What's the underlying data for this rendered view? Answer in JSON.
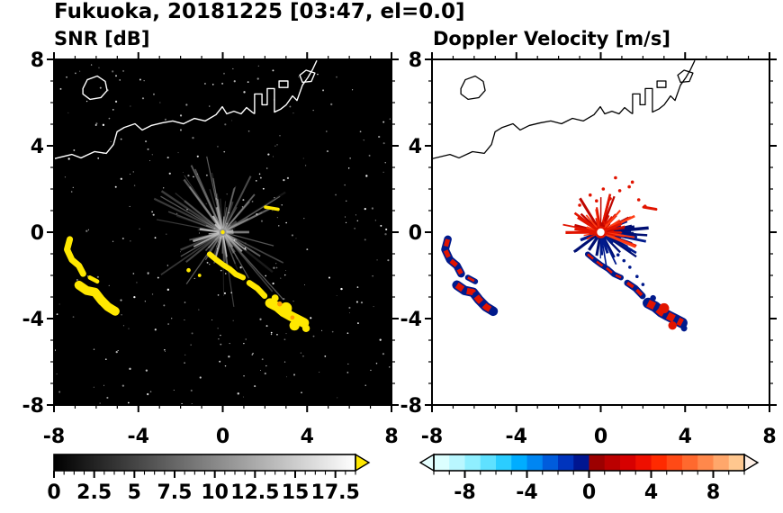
{
  "title": "Fukuoka, 20181225 [03:47, el=0.0]",
  "coastline": [
    {
      "name": "north-coast-west",
      "closed": false,
      "points": [
        [
          -8,
          3.4
        ],
        [
          -7.15,
          3.6
        ],
        [
          -6.72,
          3.44
        ],
        [
          -6.08,
          3.73
        ],
        [
          -5.52,
          3.65
        ],
        [
          -5.18,
          4.06
        ],
        [
          -5.01,
          4.65
        ],
        [
          -4.67,
          4.85
        ],
        [
          -4.16,
          5.02
        ],
        [
          -3.82,
          4.73
        ],
        [
          -3.39,
          4.94
        ],
        [
          -2.88,
          5.06
        ],
        [
          -2.37,
          5.15
        ],
        [
          -1.86,
          5.02
        ],
        [
          -1.34,
          5.27
        ],
        [
          -0.83,
          5.15
        ],
        [
          -0.32,
          5.44
        ],
        [
          -0.02,
          5.81
        ],
        [
          0.19,
          5.48
        ],
        [
          0.53,
          5.6
        ],
        [
          0.87,
          5.48
        ],
        [
          1.13,
          5.77
        ],
        [
          1.39,
          5.56
        ],
        [
          1.51,
          5.48
        ]
      ]
    },
    {
      "name": "harbor-piers",
      "closed": false,
      "points": [
        [
          1.51,
          5.48
        ],
        [
          1.51,
          6.4
        ],
        [
          1.86,
          6.4
        ],
        [
          1.86,
          5.9
        ],
        [
          2.11,
          5.9
        ],
        [
          2.11,
          6.65
        ],
        [
          2.45,
          6.65
        ],
        [
          2.45,
          5.56
        ],
        [
          2.75,
          5.7
        ],
        [
          3.01,
          5.9
        ],
        [
          3.31,
          6.31
        ],
        [
          3.52,
          6.1
        ],
        [
          3.78,
          6.81
        ],
        [
          4.03,
          7.15
        ],
        [
          4.25,
          7.52
        ],
        [
          4.46,
          7.95
        ]
      ]
    },
    {
      "name": "island",
      "closed": true,
      "points": [
        [
          -6.63,
          6.65
        ],
        [
          -6.42,
          7.06
        ],
        [
          -5.95,
          7.23
        ],
        [
          -5.57,
          6.98
        ],
        [
          -5.48,
          6.56
        ],
        [
          -5.78,
          6.23
        ],
        [
          -6.29,
          6.15
        ],
        [
          -6.63,
          6.4
        ]
      ]
    },
    {
      "name": "breakwater",
      "closed": true,
      "points": [
        [
          2.67,
          6.7
        ],
        [
          2.67,
          7.0
        ],
        [
          3.09,
          7.0
        ],
        [
          3.09,
          6.7
        ]
      ]
    },
    {
      "name": "headland",
      "closed": true,
      "points": [
        [
          3.65,
          7.27
        ],
        [
          3.95,
          7.5
        ],
        [
          4.37,
          7.37
        ],
        [
          4.2,
          6.98
        ],
        [
          3.78,
          6.94
        ]
      ]
    }
  ],
  "chart_data": [
    {
      "type": "heatmap",
      "title": "SNR [dB]",
      "xlabel": "",
      "ylabel": "",
      "xlim": [
        -8,
        8
      ],
      "ylim": [
        -8,
        8
      ],
      "xticks": [
        -8,
        -4,
        0,
        4,
        8
      ],
      "yticks": [
        -8,
        -4,
        0,
        4,
        8
      ],
      "minor_tick_step": 1,
      "background": "#000000",
      "radar_site": [
        0,
        0
      ],
      "echo_color": "#ffe800",
      "noise_speckle": {
        "count": 320,
        "color": "#ffffff",
        "seed": 42
      },
      "clutter_spokes": {
        "count": 85,
        "max_radius": 3.2,
        "color": "#b4b4b4",
        "seed": 7
      },
      "long_rays": [
        {
          "angle_deg": 32,
          "len": 3.2
        },
        {
          "angle_deg": -48,
          "len": 4.3
        },
        {
          "angle_deg": 150,
          "len": 3.4
        },
        {
          "angle_deg": 100,
          "len": 2.6
        },
        {
          "angle_deg": -125,
          "len": 3.0
        },
        {
          "angle_deg": -15,
          "len": 2.5
        },
        {
          "angle_deg": 210,
          "len": 2.3
        },
        {
          "angle_deg": 75,
          "len": 2.2
        }
      ],
      "echoes": [
        {
          "name": "west-arc-north",
          "width": 0.3,
          "points": [
            [
              -7.25,
              -0.33
            ],
            [
              -7.38,
              -0.8
            ],
            [
              -7.15,
              -1.28
            ],
            [
              -6.82,
              -1.55
            ],
            [
              -6.62,
              -1.92
            ]
          ]
        },
        {
          "name": "west-arc-south",
          "width": 0.42,
          "points": [
            [
              -6.82,
              -2.45
            ],
            [
              -6.45,
              -2.7
            ],
            [
              -6.05,
              -2.78
            ],
            [
              -5.78,
              -3.12
            ],
            [
              -5.45,
              -3.45
            ],
            [
              -5.1,
              -3.66
            ]
          ]
        },
        {
          "name": "west-dash",
          "width": 0.2,
          "points": [
            [
              -6.3,
              -2.1
            ],
            [
              -5.95,
              -2.28
            ]
          ]
        },
        {
          "name": "band-inner",
          "width": 0.26,
          "points": [
            [
              -0.62,
              -1.02
            ],
            [
              -0.3,
              -1.28
            ],
            [
              0,
              -1.5
            ],
            [
              0.33,
              -1.7
            ],
            [
              0.62,
              -1.95
            ],
            [
              0.96,
              -2.1
            ]
          ]
        },
        {
          "name": "band-mid",
          "width": 0.28,
          "points": [
            [
              1.26,
              -2.35
            ],
            [
              1.64,
              -2.6
            ],
            [
              1.98,
              -2.95
            ]
          ]
        },
        {
          "name": "band-outer",
          "width": 0.46,
          "points": [
            [
              2.24,
              -3.28
            ],
            [
              2.58,
              -3.45
            ],
            [
              2.88,
              -3.7
            ],
            [
              3.18,
              -3.86
            ],
            [
              3.52,
              -4.03
            ],
            [
              3.86,
              -4.2
            ]
          ]
        },
        {
          "name": "band-outer-dots",
          "dots": [
            [
              3.0,
              -3.52,
              0.28
            ],
            [
              3.4,
              -4.32,
              0.24
            ],
            [
              2.48,
              -3.05,
              0.17
            ],
            [
              3.95,
              -4.45,
              0.18
            ]
          ]
        },
        {
          "name": "band-orange-specks",
          "color": "#ff9c00",
          "dots": [
            [
              2.7,
              -3.32,
              0.12
            ],
            [
              3.3,
              -3.95,
              0.1
            ]
          ]
        },
        {
          "name": "northeast-dash",
          "width": 0.16,
          "points": [
            [
              2.03,
              1.16
            ],
            [
              2.62,
              1.06
            ]
          ]
        },
        {
          "name": "inner-specks",
          "dots": [
            [
              -1.62,
              -1.76,
              0.1
            ],
            [
              -1.1,
              -2.0,
              0.08
            ]
          ]
        }
      ],
      "colorbar": {
        "range": [
          0,
          18.75
        ],
        "major_ticks": [
          0,
          2.5,
          5,
          7.5,
          10,
          12.5,
          15,
          17.5
        ],
        "minor_step": 0.625,
        "gradient": [
          "#000000",
          "#ffffff"
        ],
        "over_color": "#ffe800"
      }
    },
    {
      "type": "heatmap",
      "title": "Doppler Velocity [m/s]",
      "xlabel": "",
      "ylabel": "",
      "xlim": [
        -8,
        8
      ],
      "ylim": [
        -8,
        8
      ],
      "xticks": [
        -8,
        -4,
        0,
        4,
        8
      ],
      "yticks": [
        -8,
        -4,
        0,
        4,
        8
      ],
      "minor_tick_step": 1,
      "background": "#ffffff",
      "radar_site": [
        0,
        0
      ],
      "fan": {
        "seed": 11,
        "away_color": "#e11400",
        "away_dark": "#bf0600",
        "away_light": "#ff3c14",
        "toward_color": "#001a8c",
        "toward_dark": "#000f73",
        "away_count": 72,
        "toward_count": 60
      },
      "away_dots": [
        [
          0.45,
          1.55
        ],
        [
          0.9,
          1.92
        ],
        [
          1.35,
          2.1
        ],
        [
          0.12,
          2.0
        ],
        [
          -0.5,
          1.72
        ],
        [
          1.8,
          1.5
        ],
        [
          -1.0,
          1.25
        ],
        [
          1.5,
          2.32
        ],
        [
          0.7,
          2.52
        ],
        [
          -0.2,
          1.45
        ],
        [
          2.1,
          1.2
        ]
      ],
      "toward_dots": [
        [
          1.1,
          -1.32
        ],
        [
          1.38,
          -1.62
        ],
        [
          0.82,
          -1.05
        ],
        [
          1.72,
          -2.05
        ],
        [
          2.0,
          -2.42
        ]
      ],
      "echoes": [
        {
          "name": "west-arc-north",
          "width": 0.26,
          "points": [
            [
              -7.25,
              -0.33
            ],
            [
              -7.38,
              -0.8
            ],
            [
              -7.15,
              -1.28
            ],
            [
              -6.82,
              -1.55
            ],
            [
              -6.62,
              -1.92
            ]
          ]
        },
        {
          "name": "west-arc-south",
          "width": 0.34,
          "points": [
            [
              -6.82,
              -2.45
            ],
            [
              -6.45,
              -2.7
            ],
            [
              -6.05,
              -2.78
            ],
            [
              -5.78,
              -3.12
            ],
            [
              -5.45,
              -3.45
            ],
            [
              -5.1,
              -3.66
            ]
          ]
        },
        {
          "name": "west-dash",
          "width": 0.16,
          "points": [
            [
              -6.3,
              -2.1
            ],
            [
              -5.95,
              -2.28
            ]
          ]
        },
        {
          "name": "band-inner",
          "width": 0.15,
          "points": [
            [
              -0.62,
              -1.02
            ],
            [
              -0.3,
              -1.28
            ],
            [
              0,
              -1.5
            ],
            [
              0.33,
              -1.7
            ],
            [
              0.62,
              -1.95
            ],
            [
              0.96,
              -2.1
            ]
          ]
        },
        {
          "name": "band-mid",
          "width": 0.2,
          "points": [
            [
              1.26,
              -2.35
            ],
            [
              1.64,
              -2.6
            ],
            [
              1.98,
              -2.95
            ]
          ]
        },
        {
          "name": "band-outer",
          "width": 0.4,
          "points": [
            [
              2.24,
              -3.28
            ],
            [
              2.58,
              -3.45
            ],
            [
              2.88,
              -3.7
            ],
            [
              3.18,
              -3.86
            ],
            [
              3.52,
              -4.03
            ],
            [
              3.86,
              -4.2
            ]
          ]
        },
        {
          "name": "band-outer-dots-away",
          "solid": "#e11400",
          "dots": [
            [
              3.0,
              -3.52,
              0.24
            ],
            [
              3.4,
              -4.32,
              0.2
            ]
          ]
        },
        {
          "name": "band-outer-dots-toward",
          "solid": "#001a8c",
          "dots": [
            [
              2.48,
              -3.05,
              0.14
            ],
            [
              3.95,
              -4.45,
              0.15
            ]
          ]
        },
        {
          "name": "northeast-dash",
          "solid": "#e11400",
          "width": 0.13,
          "points": [
            [
              2.03,
              1.16
            ],
            [
              2.62,
              1.06
            ]
          ]
        }
      ],
      "colorbar": {
        "range": [
          -10,
          10
        ],
        "major_ticks": [
          -8,
          -4,
          0,
          4,
          8
        ],
        "minor_step": 1,
        "segments": [
          "#dcffff",
          "#b9f7ff",
          "#8fefff",
          "#5fe1ff",
          "#2bcdff",
          "#00adff",
          "#0086f2",
          "#005cdc",
          "#0034bd",
          "#001691",
          "#9c0000",
          "#bb0000",
          "#d70000",
          "#ee0f00",
          "#ff2a00",
          "#ff4a16",
          "#ff692e",
          "#ff884b",
          "#ffa76b",
          "#ffc78f"
        ],
        "under_color": "#e6ffff",
        "over_color": "#fff0e6"
      }
    }
  ]
}
